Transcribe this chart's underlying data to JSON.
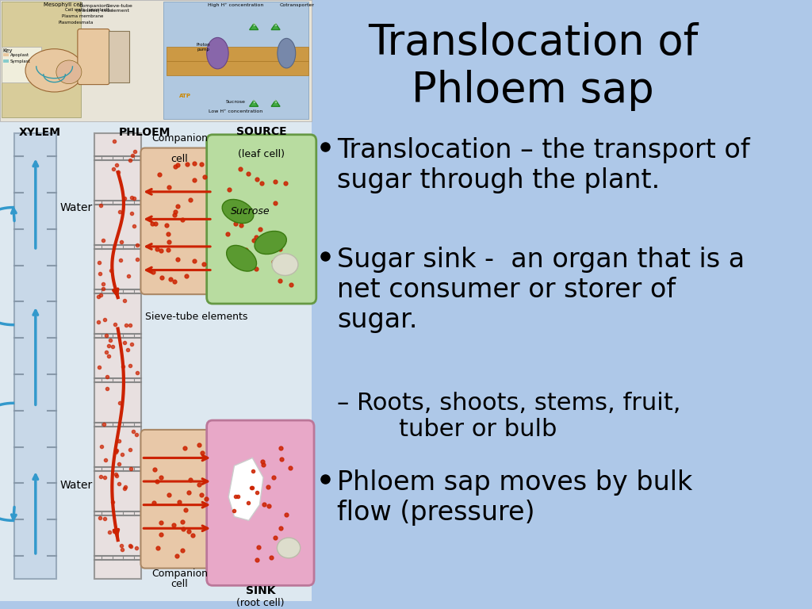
{
  "title": "Translocation of\nPhloem sap",
  "title_fontsize": 38,
  "background_color": "#aec8e8",
  "bullet_points": [
    {
      "text": "Translocation – the transport of sugar through the plant.",
      "level": 0,
      "fontsize": 24
    },
    {
      "text": "Sugar sink -  an organ that is a net consumer or storer of sugar.",
      "level": 0,
      "fontsize": 24
    },
    {
      "text": "– Roots, shoots, stems, fruit,\n        tuber or bulb",
      "level": 1,
      "fontsize": 22
    },
    {
      "text": "Phloem sap moves by bulk flow (pressure)",
      "level": 0,
      "fontsize": 24
    }
  ],
  "companion_source_color": "#e8c8a8",
  "source_cell_color": "#b8dca0",
  "companion_sink_color": "#e8c8a8",
  "sink_cell_color": "#e8a8c8",
  "xylem_color": "#c8d8e8",
  "phloem_color": "#d8d8d8",
  "water_arrow_color": "#3399cc",
  "sucrose_arrow_color": "#cc2200",
  "dot_color": "#cc2200"
}
